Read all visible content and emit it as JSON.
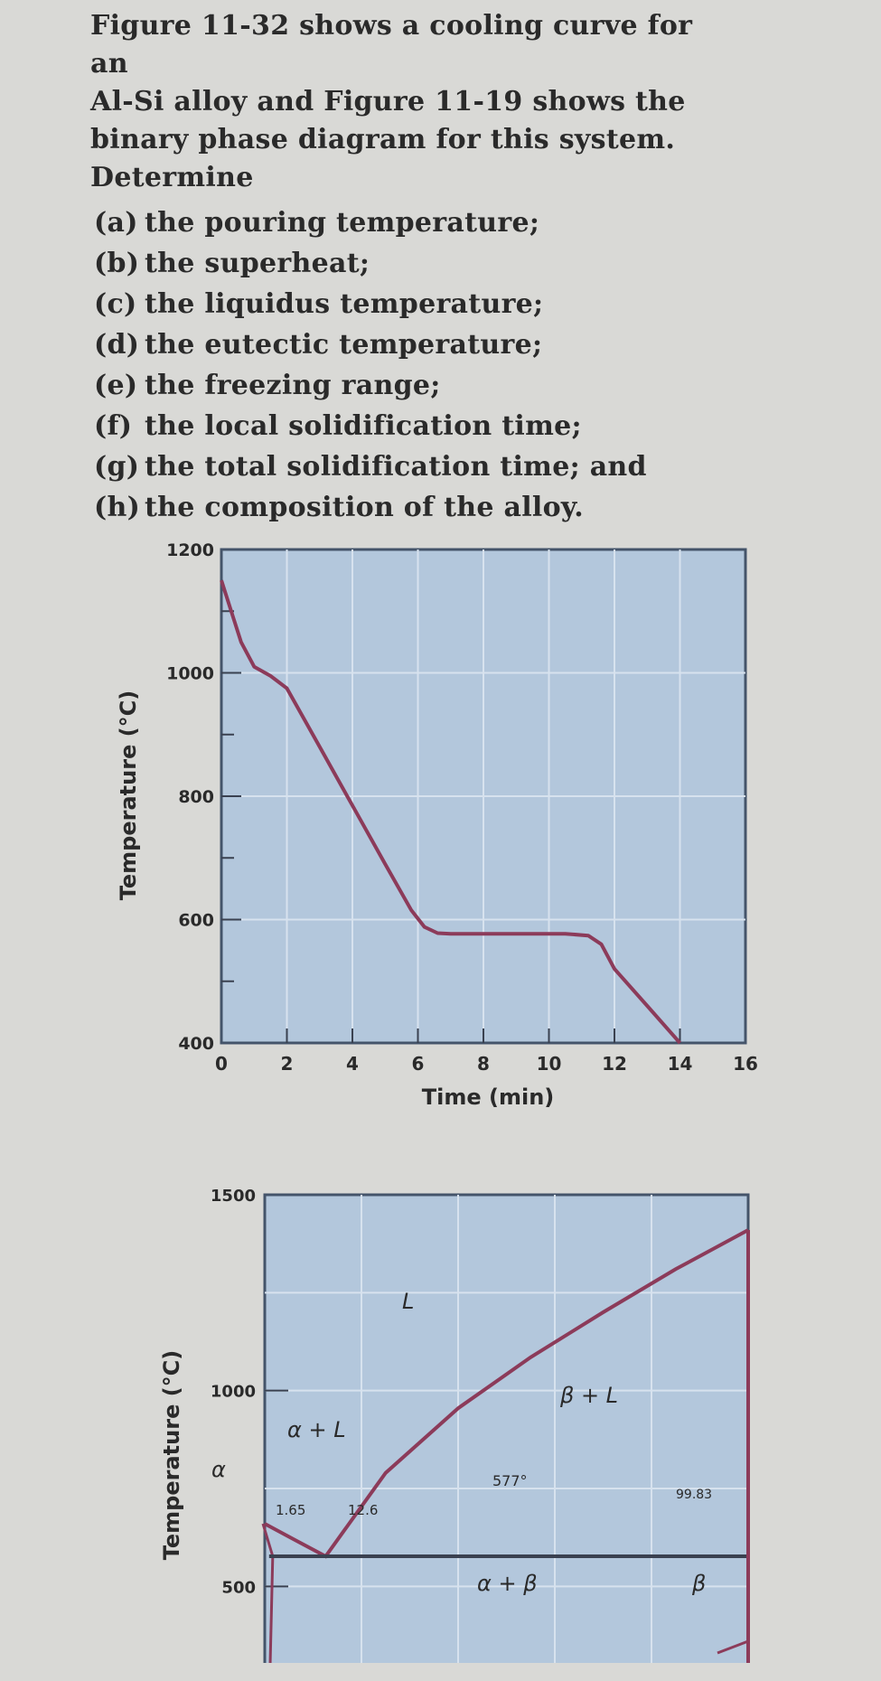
{
  "problem": {
    "intro_lines": [
      "Figure 11-32 shows a cooling curve for an",
      "Al-Si alloy and Figure 11-19 shows the",
      "binary phase diagram for this system.",
      "Determine"
    ],
    "parts": [
      {
        "label": "(a)",
        "text": "the pouring temperature;"
      },
      {
        "label": "(b)",
        "text": "the superheat;"
      },
      {
        "label": "(c)",
        "text": "the liquidus temperature;"
      },
      {
        "label": "(d)",
        "text": "the eutectic temperature;"
      },
      {
        "label": "(e)",
        "text": "the freezing range;"
      },
      {
        "label": "(f)",
        "text": "the local solidification time;"
      },
      {
        "label": "(g)",
        "text": "the total solidification time; and"
      },
      {
        "label": "(h)",
        "text": "the composition of the alloy."
      }
    ]
  },
  "chart_data": [
    {
      "type": "line",
      "title": "",
      "xlabel": "Time (min)",
      "ylabel": "Temperature (°C)",
      "xlim": [
        0,
        16
      ],
      "ylim": [
        400,
        1200
      ],
      "x_ticks": [
        "0",
        "2",
        "4",
        "6",
        "8",
        "10",
        "12",
        "14",
        "16"
      ],
      "y_ticks": [
        "400",
        "600",
        "800",
        "1000",
        "1200"
      ],
      "grid": true,
      "series": [
        {
          "x": [
            0,
            0.3,
            0.6,
            1.0,
            1.5,
            2.0,
            3.0,
            4.0,
            5.0,
            5.8,
            6.2,
            6.6,
            7.0,
            9.0,
            10.5,
            11.2,
            11.6,
            12.0,
            13.0,
            14.0
          ],
          "y": [
            1150,
            1100,
            1050,
            1010,
            995,
            975,
            880,
            785,
            690,
            615,
            588,
            578,
            577,
            577,
            577,
            574,
            560,
            520,
            460,
            400
          ]
        }
      ]
    },
    {
      "type": "diagram",
      "title": "",
      "ylabel": "Temperature (°C)",
      "ylim": [
        300,
        1500
      ],
      "y_ticks": [
        "500",
        "1000",
        "1500"
      ],
      "grid": true,
      "region_labels": [
        "L",
        "β + L",
        "α + L",
        "α + β",
        "α",
        "β"
      ],
      "annotations": [
        "577°",
        "1.65",
        "12.6",
        "99.83"
      ],
      "eutectic_temperature": 577,
      "composition_points": [
        1.65,
        12.6,
        99.83
      ],
      "liquidus": {
        "x": [
          0,
          6,
          12.6,
          25,
          40,
          55,
          70,
          85,
          100
        ],
        "y": [
          660,
          620,
          577,
          790,
          955,
          1085,
          1200,
          1310,
          1410
        ]
      }
    }
  ]
}
